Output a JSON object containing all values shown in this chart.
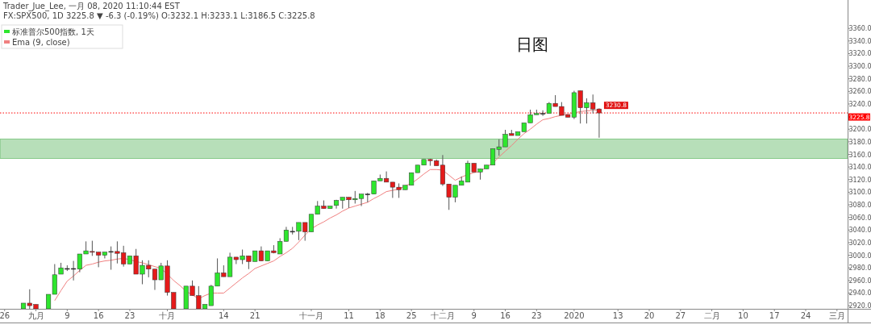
{
  "chart_data": {
    "type": "candlestick",
    "title": "日图",
    "annotations": [
      "Trader_Jue_Lee, 一月 08, 2020 11:10:44 EST",
      "FX:SPX500, 1D 3225.8 ▼ -6.3 (-0.19%) O:3232.1 H:3233.1 L:3186.5 C:3225.8"
    ],
    "categories": [
      "26",
      null,
      null,
      null,
      null,
      "九月",
      null,
      null,
      null,
      null,
      "9",
      null,
      null,
      null,
      null,
      "16",
      null,
      null,
      null,
      null,
      "23",
      null,
      null,
      null,
      null,
      null,
      "十月",
      null,
      null,
      null,
      null,
      null,
      null,
      null,
      null,
      "14",
      null,
      null,
      null,
      null,
      "21",
      null,
      null,
      null,
      null,
      null,
      null,
      null,
      null,
      "十一月",
      null,
      null,
      null,
      null,
      null,
      "11",
      null,
      null,
      null,
      null,
      "18",
      null,
      null,
      null,
      null,
      "25",
      null,
      null,
      null,
      null,
      "十二月",
      null,
      null,
      null,
      null,
      "9",
      null,
      null,
      null,
      null,
      "16",
      null,
      null,
      null,
      null,
      "23",
      null,
      null,
      null,
      null,
      null,
      "2020",
      null,
      null,
      null,
      null,
      null,
      null,
      "13",
      null,
      null,
      null,
      null,
      "20",
      null,
      null,
      null,
      null,
      "27",
      null,
      null,
      null,
      null,
      "二月",
      null,
      null,
      null,
      null,
      "10",
      null,
      null,
      null,
      null,
      "17",
      null,
      null,
      null,
      null,
      "24",
      null,
      null,
      null,
      null,
      "三月"
    ],
    "series": [
      {
        "name": "标准普尔500指数, 1天",
        "color": "#2ee62e",
        "ohlc": [
          null,
          null,
          null,
          [
            2915,
            2924,
            2915,
            2924
          ],
          [
            2924,
            2946,
            2915,
            2920
          ],
          [
            2922,
            2922,
            2915,
            2915
          ],
          null,
          [
            2915,
            2938,
            2915,
            2938
          ],
          [
            2938,
            2986,
            2938,
            2969
          ],
          [
            2970,
            2988,
            2970,
            2980
          ],
          [
            2979,
            2984,
            2975,
            2979
          ],
          [
            2979,
            2991,
            2960,
            2979
          ],
          [
            2978,
            3002,
            2973,
            3002
          ],
          [
            3002,
            3022,
            3002,
            3007
          ],
          [
            3006,
            3023,
            2999,
            3005
          ],
          [
            3005,
            3005,
            2981,
            3000
          ],
          [
            3000,
            3005,
            2995,
            3005
          ],
          [
            3006,
            3014,
            2977,
            3006
          ],
          [
            3006,
            3022,
            2987,
            3003
          ],
          [
            3004,
            3015,
            2982,
            2986
          ],
          [
            2986,
            2999,
            2986,
            2999
          ],
          [
            2999,
            3010,
            2970,
            2970
          ],
          [
            2970,
            2992,
            2954,
            2984
          ],
          [
            2984,
            2992,
            2965,
            2978
          ],
          [
            2978,
            2978,
            2945,
            2961
          ],
          [
            2961,
            2988,
            2961,
            2983
          ],
          [
            2983,
            2992,
            2936,
            2941
          ],
          [
            2941,
            2941,
            2915,
            2915
          ],
          null,
          [
            2915,
            2951,
            2915,
            2951
          ],
          [
            2951,
            2960,
            2936,
            2936
          ],
          [
            2936,
            2951,
            2915,
            2915
          ],
          [
            2915,
            2922,
            2915,
            2922
          ],
          [
            2920,
            2953,
            2920,
            2951
          ],
          [
            2951,
            2995,
            2951,
            2972
          ],
          [
            2972,
            2984,
            2966,
            2966
          ],
          [
            2966,
            3004,
            2966,
            2997
          ],
          [
            2997,
            2997,
            2986,
            2993
          ],
          [
            2993,
            3009,
            2986,
            2999
          ],
          [
            2999,
            2999,
            2978,
            2990
          ],
          [
            2990,
            3007,
            2990,
            3007
          ],
          [
            3007,
            3014,
            2991,
            2991
          ],
          [
            2991,
            3007,
            2991,
            3007
          ],
          [
            3007,
            3016,
            3003,
            3004
          ],
          [
            3002,
            3027,
            3002,
            3022
          ],
          [
            3022,
            3045,
            3022,
            3040
          ],
          [
            3038,
            3045,
            3033,
            3038
          ],
          [
            3038,
            3052,
            3024,
            3052
          ],
          [
            3052,
            3052,
            3023,
            3037
          ],
          [
            3037,
            3065,
            3037,
            3065
          ],
          [
            3065,
            3086,
            3065,
            3078
          ],
          [
            3078,
            3087,
            3074,
            3074
          ],
          [
            3074,
            3078,
            3074,
            3078
          ],
          [
            3079,
            3088,
            3074,
            3087
          ],
          [
            3087,
            3092,
            3074,
            3092
          ],
          [
            3092,
            3092,
            3075,
            3088
          ],
          [
            3088,
            3102,
            3082,
            3090
          ],
          [
            3090,
            3097,
            3078,
            3097
          ],
          [
            3097,
            3099,
            3084,
            3097
          ],
          [
            3097,
            3118,
            3097,
            3118
          ],
          [
            3118,
            3128,
            3118,
            3122
          ],
          [
            3122,
            3133,
            3116,
            3116
          ],
          [
            3116,
            3116,
            3091,
            3108
          ],
          [
            3108,
            3114,
            3091,
            3104
          ],
          [
            3104,
            3111,
            3104,
            3111
          ],
          [
            3111,
            3131,
            3111,
            3131
          ],
          [
            3131,
            3143,
            3131,
            3143
          ],
          [
            3143,
            3152,
            3143,
            3152
          ],
          [
            3152,
            3153,
            3142,
            3150
          ],
          [
            3150,
            3152,
            3142,
            3142
          ],
          [
            3143,
            3159,
            3110,
            3113
          ],
          [
            3113,
            3113,
            3072,
            3092
          ],
          [
            3092,
            3111,
            3084,
            3111
          ],
          [
            3111,
            3125,
            3111,
            3118
          ],
          [
            3116,
            3150,
            3116,
            3146
          ],
          [
            3146,
            3146,
            3132,
            3132
          ],
          [
            3132,
            3137,
            3120,
            3137
          ],
          [
            3137,
            3143,
            3137,
            3143
          ],
          [
            3143,
            3169,
            3143,
            3169
          ],
          [
            3168,
            3184,
            3158,
            3172
          ],
          [
            3172,
            3199,
            3172,
            3192
          ],
          [
            3193,
            3199,
            3190,
            3190
          ],
          [
            3190,
            3196,
            3190,
            3196
          ],
          [
            3196,
            3210,
            3196,
            3210
          ],
          [
            3210,
            3231,
            3210,
            3223
          ],
          [
            3223,
            3231,
            3223,
            3225
          ],
          [
            3225,
            3230,
            3221,
            3225
          ],
          [
            3225,
            3243,
            3225,
            3241
          ],
          [
            3241,
            3254,
            3236,
            3236
          ],
          [
            3236,
            3243,
            3222,
            3222
          ],
          [
            3223,
            3223,
            3219,
            3219
          ],
          [
            3219,
            3261,
            3216,
            3258
          ],
          [
            3261,
            3261,
            3209,
            3234
          ],
          [
            3234,
            3249,
            3209,
            3242
          ],
          [
            3242,
            3255,
            3225,
            3232
          ],
          [
            3232.1,
            3233.1,
            3186.5,
            3225.8
          ],
          null,
          null,
          null,
          null,
          null,
          null,
          null,
          null,
          null,
          null,
          null,
          null,
          null,
          null,
          null,
          null,
          null,
          null,
          null,
          null,
          null,
          null,
          null,
          null,
          null,
          null,
          null,
          null,
          null,
          null,
          null,
          null,
          null,
          null,
          null,
          null,
          null,
          null
        ],
        "colors": [
          null,
          null,
          null,
          "#2ee62e",
          "#e51a1a",
          "#e51a1a",
          null,
          "#2ee62e",
          "#2ee62e",
          "#2ee62e",
          "#222222",
          "#222222",
          "#2ee62e",
          "#2ee62e",
          "#e51a1a",
          "#e51a1a",
          "#2ee62e",
          "#222222",
          "#e51a1a",
          "#e51a1a",
          "#2ee62e",
          "#e51a1a",
          "#2ee62e",
          "#e51a1a",
          "#e51a1a",
          "#2ee62e",
          "#e51a1a",
          "#e51a1a",
          null,
          "#2ee62e",
          "#e51a1a",
          "#e51a1a",
          "#2ee62e",
          "#2ee62e",
          "#2ee62e",
          "#e51a1a",
          "#2ee62e",
          "#e51a1a",
          "#2ee62e",
          "#e51a1a",
          "#2ee62e",
          "#e51a1a",
          "#2ee62e",
          "#e51a1a",
          "#2ee62e",
          "#2ee62e",
          "#222222",
          "#2ee62e",
          "#e51a1a",
          "#2ee62e",
          "#2ee62e",
          "#e51a1a",
          "#2ee62e",
          "#2ee62e",
          "#2ee62e",
          "#e51a1a",
          "#2ee62e",
          "#2ee62e",
          "#222222",
          "#2ee62e",
          "#2ee62e",
          "#e51a1a",
          "#e51a1a",
          "#e51a1a",
          "#2ee62e",
          "#2ee62e",
          "#2ee62e",
          "#2ee62e",
          "#e51a1a",
          "#e51a1a",
          "#e51a1a",
          "#e51a1a",
          "#2ee62e",
          "#2ee62e",
          "#2ee62e",
          "#e51a1a",
          "#2ee62e",
          "#2ee62e",
          "#2ee62e",
          "#2ee62e",
          "#2ee62e",
          "#e51a1a",
          "#2ee62e",
          "#2ee62e",
          "#2ee62e",
          "#2ee62e",
          "#222222",
          "#2ee62e",
          "#e51a1a",
          "#e51a1a",
          "#e51a1a",
          "#2ee62e",
          "#e51a1a",
          "#2ee62e",
          "#e51a1a",
          "#e51a1a",
          null,
          null,
          null,
          null,
          null,
          null,
          null,
          null,
          null,
          null,
          null,
          null,
          null,
          null,
          null,
          null,
          null,
          null,
          null,
          null,
          null,
          null,
          null,
          null,
          null,
          null,
          null,
          null,
          null,
          null,
          null,
          null,
          null,
          null,
          null,
          null,
          null,
          null
        ]
      },
      {
        "type": "line",
        "name": "Ema (9, close)",
        "color": "#f08080",
        "values": [
          null,
          null,
          null,
          null,
          null,
          null,
          null,
          null,
          2928,
          2944,
          2959,
          2967,
          2976,
          2984,
          2986,
          2989,
          2991,
          2992,
          2994,
          2995,
          2993,
          2990,
          2988,
          2985,
          2982,
          2979,
          2970,
          2960,
          2952,
          2943,
          2937,
          2931,
          2936,
          2940,
          2940,
          2940,
          2948,
          2956,
          2964,
          2971,
          2979,
          2983,
          2987,
          2991,
          2998,
          3004,
          3011,
          3021,
          3032,
          3042,
          3048,
          3053,
          3059,
          3064,
          3070,
          3075,
          3078,
          3081,
          3084,
          3090,
          3095,
          3101,
          3103,
          3105,
          3110,
          3114,
          3121,
          3129,
          3136,
          3136,
          3135,
          3127,
          3119,
          3124,
          3128,
          3131,
          3133,
          3140,
          3146,
          3156,
          3165,
          3174,
          3184,
          3193,
          3200,
          3208,
          3215,
          3217,
          3220,
          3222,
          3224,
          3226,
          3228,
          3229,
          3230,
          3230.8,
          null,
          null,
          null,
          null,
          null,
          null,
          null,
          null,
          null,
          null,
          null,
          null,
          null,
          null,
          null,
          null,
          null,
          null,
          null,
          null,
          null,
          null,
          null,
          null,
          null,
          null,
          null,
          null,
          null,
          null,
          null,
          null,
          null,
          null,
          null,
          null,
          null,
          null
        ],
        "value_labels": [
          null,
          null,
          null,
          null,
          null,
          null,
          null,
          null,
          null,
          null,
          null,
          null,
          null,
          null,
          null,
          null,
          null,
          null,
          null,
          null,
          null,
          null,
          null,
          null,
          null,
          null,
          null,
          null,
          null,
          null,
          null,
          null,
          null,
          null,
          null,
          null,
          null,
          null,
          null,
          null,
          null,
          null,
          null,
          null,
          null,
          null,
          null,
          null,
          null,
          null,
          null,
          null,
          null,
          null,
          null,
          null,
          null,
          null,
          null,
          null,
          null,
          null,
          null,
          null,
          null,
          null,
          null,
          null,
          null,
          null,
          null,
          null,
          null,
          null,
          null,
          null,
          null,
          null,
          null,
          null,
          null,
          null,
          null,
          null,
          null,
          null,
          null,
          null,
          null,
          null,
          null,
          null,
          null,
          null,
          null,
          "3230.8",
          null,
          null,
          null,
          null,
          null,
          null,
          null,
          null,
          null,
          null,
          null,
          null,
          null,
          null,
          null,
          null,
          null,
          null,
          null,
          null,
          null,
          null,
          null,
          null,
          null,
          null,
          null,
          null,
          null,
          null,
          null,
          null,
          null,
          null,
          null,
          null,
          null,
          null
        ]
      }
    ],
    "ylim": [
      2915,
      3405
    ],
    "yticks": [
      {
        "value": 2920,
        "label": "2920.0"
      },
      {
        "value": 2940,
        "label": "2940.0"
      },
      {
        "value": 2960,
        "label": "2960.0"
      },
      {
        "value": 2980,
        "label": "2980.0"
      },
      {
        "value": 3000,
        "label": "3000.0"
      },
      {
        "value": 3020,
        "label": "3020.0"
      },
      {
        "value": 3040,
        "label": "3040.0"
      },
      {
        "value": 3060,
        "label": "3060.0"
      },
      {
        "value": 3080,
        "label": "3080.0"
      },
      {
        "value": 3100,
        "label": "3100.0"
      },
      {
        "value": 3120,
        "label": "3120.0"
      },
      {
        "value": 3140,
        "label": "3140.0"
      },
      {
        "value": 3160,
        "label": "3160.0"
      },
      {
        "value": 3180,
        "label": "3180.0"
      },
      {
        "value": 3200,
        "label": "3200.0"
      },
      {
        "value": 3220,
        "label": null
      },
      {
        "value": 3240,
        "label": "3240.0"
      },
      {
        "value": 3260,
        "label": "3260.0"
      },
      {
        "value": 3280,
        "label": "3280.0"
      },
      {
        "value": 3300,
        "label": "3300.0"
      },
      {
        "value": 3320,
        "label": "3320.0"
      },
      {
        "value": 3340,
        "label": "3340.0"
      },
      {
        "value": 3360,
        "label": "3360.0"
      }
    ],
    "ref_lines": [
      {
        "axis": "y",
        "value": 3225.8,
        "label": "3225.8",
        "color": "#ff0000",
        "line_style": "dotted"
      }
    ],
    "bands": [
      {
        "axis": "y",
        "from": 3153.6,
        "to": 3184.4,
        "color": "#4caf50"
      }
    ],
    "legend": "top left"
  }
}
